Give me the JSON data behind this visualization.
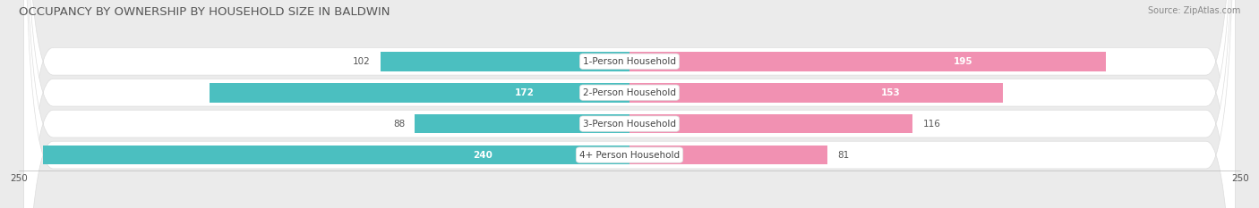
{
  "title": "OCCUPANCY BY OWNERSHIP BY HOUSEHOLD SIZE IN BALDWIN",
  "source": "Source: ZipAtlas.com",
  "categories": [
    "1-Person Household",
    "2-Person Household",
    "3-Person Household",
    "4+ Person Household"
  ],
  "owner_values": [
    102,
    172,
    88,
    240
  ],
  "renter_values": [
    195,
    153,
    116,
    81
  ],
  "max_val": 250,
  "owner_color": "#4bbfc0",
  "renter_color": "#f191b2",
  "bg_color": "#ebebeb",
  "row_bg_color": "#f7f7f7",
  "title_fontsize": 9.5,
  "source_fontsize": 7,
  "label_fontsize": 7.5,
  "value_fontsize": 7.5,
  "tick_fontsize": 7.5,
  "legend_fontsize": 8
}
